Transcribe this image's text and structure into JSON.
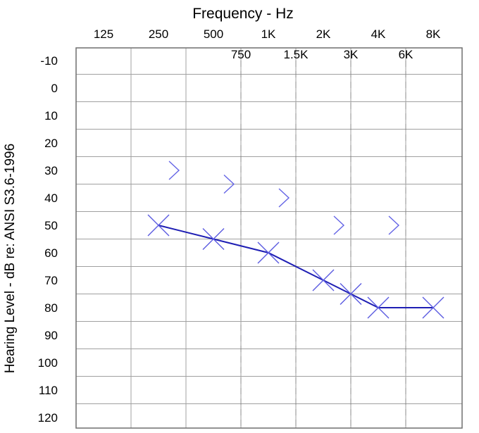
{
  "chart_data": {
    "type": "scatter",
    "title": "Frequency - Hz",
    "ylabel": "Hearing Level - dB   re: ANSI S3.6-1996",
    "x_top_ticks": [
      "125",
      "250",
      "500",
      "1K",
      "2K",
      "4K",
      "8K"
    ],
    "x_inter_ticks": [
      "750",
      "1.5K",
      "3K",
      "6K"
    ],
    "y_ticks": [
      "-10",
      "0",
      "10",
      "20",
      "30",
      "40",
      "50",
      "60",
      "70",
      "80",
      "90",
      "100",
      "110",
      "120"
    ],
    "ylim": [
      -10,
      120
    ],
    "y_inverted": true,
    "grid": true,
    "series": [
      {
        "marker": "x",
        "color": "#1e1eb4",
        "connected": true,
        "points": [
          {
            "x": "250",
            "y": 50
          },
          {
            "x": "500",
            "y": 55
          },
          {
            "x": "1K",
            "y": 60
          },
          {
            "x": "2K",
            "y": 70
          },
          {
            "x": "3K",
            "y": 75
          },
          {
            "x": "4K",
            "y": 80
          },
          {
            "x": "8K",
            "y": 80
          }
        ]
      },
      {
        "marker": "chevron-right",
        "color": "#6464e6",
        "connected": false,
        "points": [
          {
            "x": "250",
            "y": 30
          },
          {
            "x": "500",
            "y": 35
          },
          {
            "x": "1K",
            "y": 40
          },
          {
            "x": "2K",
            "y": 50
          },
          {
            "x": "4K",
            "y": 50
          }
        ]
      }
    ]
  }
}
